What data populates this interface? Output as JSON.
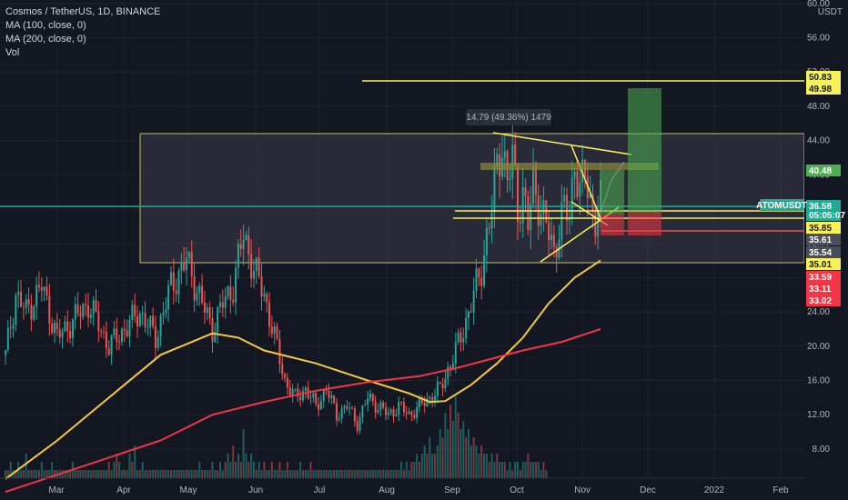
{
  "header": {
    "title": "Cosmos / TetherUS, 1D, BINANCE",
    "indicators": [
      "MA (100, close, 0)",
      "MA (200, close, 0)",
      "Vol"
    ]
  },
  "chart_data": {
    "type": "candlestick",
    "symbol": "ATOMUSDT",
    "y_axis": {
      "unit": "USDT",
      "ticks": [
        "60.00",
        "56.00",
        "52.00",
        "48.00",
        "44.00",
        "40.00",
        "36.00",
        "32.00",
        "28.00",
        "24.00",
        "20.00",
        "16.00",
        "12.00",
        "8.00"
      ],
      "range": [
        4.6,
        60.4
      ]
    },
    "x_axis": {
      "ticks": [
        "Mar",
        "Apr",
        "May",
        "Jun",
        "Jul",
        "Aug",
        "Sep",
        "Oct",
        "Nov",
        "Dec",
        "2022",
        "Feb"
      ]
    },
    "price_close_path": [
      [
        0,
        19
      ],
      [
        4,
        26
      ],
      [
        8,
        24
      ],
      [
        14,
        27
      ],
      [
        20,
        21
      ],
      [
        26,
        23
      ],
      [
        32,
        25
      ],
      [
        40,
        20
      ],
      [
        46,
        22
      ],
      [
        52,
        24
      ],
      [
        58,
        21
      ],
      [
        64,
        27
      ],
      [
        70,
        30
      ],
      [
        76,
        25
      ],
      [
        80,
        22
      ],
      [
        84,
        25
      ],
      [
        88,
        27
      ],
      [
        92,
        33
      ],
      [
        96,
        29
      ],
      [
        100,
        26
      ],
      [
        104,
        21
      ],
      [
        108,
        16
      ],
      [
        112,
        14
      ],
      [
        116,
        15
      ],
      [
        120,
        13
      ],
      [
        124,
        15
      ],
      [
        128,
        12
      ],
      [
        132,
        13
      ],
      [
        136,
        11
      ],
      [
        140,
        14
      ],
      [
        144,
        13
      ],
      [
        148,
        12
      ],
      [
        152,
        13
      ],
      [
        156,
        12
      ],
      [
        160,
        13
      ],
      [
        164,
        14
      ],
      [
        168,
        15
      ],
      [
        172,
        18
      ],
      [
        176,
        21
      ],
      [
        180,
        25
      ],
      [
        184,
        29
      ],
      [
        186,
        33
      ],
      [
        188,
        36
      ],
      [
        190,
        41
      ],
      [
        192,
        44
      ],
      [
        194,
        39
      ],
      [
        196,
        42
      ],
      [
        198,
        36
      ],
      [
        200,
        38
      ],
      [
        202,
        34
      ],
      [
        204,
        39
      ],
      [
        206,
        37
      ],
      [
        208,
        35
      ],
      [
        210,
        33
      ],
      [
        212,
        31
      ],
      [
        214,
        34
      ],
      [
        216,
        36
      ],
      [
        218,
        35
      ],
      [
        220,
        42
      ],
      [
        222,
        38
      ],
      [
        224,
        40
      ],
      [
        226,
        37
      ],
      [
        228,
        35
      ],
      [
        230,
        36.58
      ]
    ],
    "ma_100": [
      [
        0,
        4.5
      ],
      [
        20,
        9
      ],
      [
        40,
        14
      ],
      [
        60,
        19
      ],
      [
        80,
        21.5
      ],
      [
        90,
        21
      ],
      [
        100,
        19.5
      ],
      [
        120,
        18
      ],
      [
        140,
        16
      ],
      [
        156,
        14.5
      ],
      [
        164,
        13.5
      ],
      [
        170,
        13.6
      ],
      [
        180,
        15.5
      ],
      [
        190,
        18
      ],
      [
        200,
        21
      ],
      [
        210,
        25
      ],
      [
        220,
        28
      ],
      [
        230,
        30
      ]
    ],
    "ma_200": [
      [
        0,
        3
      ],
      [
        30,
        6
      ],
      [
        60,
        9
      ],
      [
        80,
        12
      ],
      [
        100,
        13.5
      ],
      [
        120,
        14.8
      ],
      [
        140,
        15.8
      ],
      [
        160,
        16.5
      ],
      [
        175,
        17.5
      ],
      [
        185,
        18.3
      ],
      [
        200,
        19.5
      ],
      [
        215,
        20.5
      ],
      [
        230,
        22
      ]
    ],
    "volume": [
      1,
      1,
      2,
      1,
      1,
      2,
      1,
      1,
      3,
      1,
      1,
      1,
      1,
      1,
      2,
      1,
      1,
      1,
      2,
      1,
      1,
      1,
      1,
      1,
      1,
      1,
      2,
      1,
      1,
      1,
      1,
      1,
      1,
      1,
      1,
      1,
      1,
      1,
      1,
      1,
      2,
      1,
      2,
      3,
      2,
      1,
      1,
      1,
      3,
      2,
      4,
      1,
      1,
      2,
      1,
      1,
      1,
      1,
      1,
      1,
      1,
      1,
      1,
      1,
      1,
      1,
      1,
      1,
      1,
      1,
      1,
      1,
      1,
      1,
      1,
      2,
      1,
      1,
      1,
      1,
      2,
      1,
      1,
      2,
      1,
      2,
      3,
      2,
      4,
      2,
      3,
      2,
      6,
      3,
      2,
      3,
      2,
      1,
      2,
      1,
      2,
      1,
      1,
      2,
      1,
      1,
      2,
      1,
      1,
      2,
      1,
      1,
      1,
      1,
      2,
      1,
      1,
      1,
      2,
      1,
      1,
      1,
      1,
      1,
      1,
      1,
      1,
      1,
      1,
      1,
      1,
      1,
      1,
      1,
      1,
      1,
      1,
      1,
      1,
      1,
      1,
      1,
      1,
      1,
      1,
      1,
      1,
      1,
      1,
      1,
      1,
      1,
      1,
      2,
      1,
      2,
      1,
      2,
      2,
      3,
      2,
      3,
      4,
      3,
      5,
      3,
      3,
      4,
      6,
      5,
      8,
      6,
      9,
      7,
      10,
      8,
      6,
      7,
      5,
      6,
      4,
      5,
      4,
      3,
      4,
      3,
      3,
      2,
      3,
      2,
      3,
      2,
      2,
      2,
      1,
      2,
      1,
      2,
      2,
      1,
      2,
      2,
      3,
      2,
      2,
      2,
      2,
      1,
      2,
      1
    ],
    "price_tags": [
      {
        "label": "50.83",
        "bg": "#f7f15a",
        "fg": "#131722"
      },
      {
        "label": "49.98",
        "bg": "#f7f15a",
        "fg": "#131722"
      },
      {
        "label": "40.48",
        "bg": "#4caf50",
        "fg": "#ffffff"
      },
      {
        "label": "36.58",
        "bg": "#22ab94",
        "fg": "#ffffff"
      },
      {
        "label": "05:05:07",
        "bg": "#22ab94",
        "fg": "#ffffff"
      },
      {
        "label": "35.85",
        "bg": "#f7f15a",
        "fg": "#131722"
      },
      {
        "label": "35.61",
        "bg": "#4a4e59",
        "fg": "#ffffff"
      },
      {
        "label": "35.54",
        "bg": "#4a4e59",
        "fg": "#ffffff"
      },
      {
        "label": "35.01",
        "bg": "#f7f15a",
        "fg": "#131722"
      },
      {
        "label": "33.59",
        "bg": "#f23645",
        "fg": "#ffffff"
      },
      {
        "label": "33.11",
        "bg": "#f23645",
        "fg": "#ffffff"
      },
      {
        "label": "33.02",
        "bg": "#f23645",
        "fg": "#ffffff"
      }
    ],
    "symbol_tag": "ATOMUSDT",
    "measure_label": "14.79 (49.36%) 1479",
    "colors": {
      "up": "#26a69a",
      "down": "#ef5350",
      "ma100": "#f7c843",
      "ma200": "#f23645",
      "trendline": "#f7f15a",
      "zone": "#3a3d48",
      "grid": "#1e222d"
    }
  }
}
